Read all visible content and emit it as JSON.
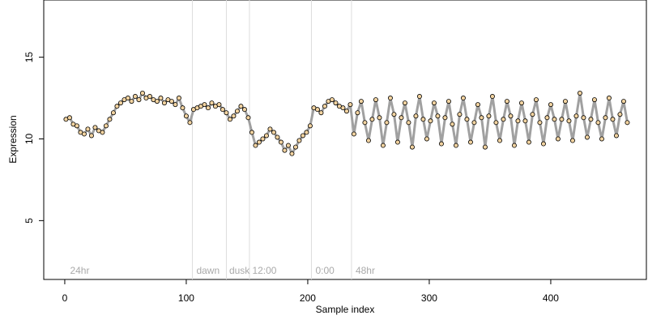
{
  "chart_data": {
    "type": "line",
    "xlabel": "Sample index",
    "ylabel": "Expression",
    "x": [
      1,
      4,
      7,
      10,
      13,
      16,
      19,
      22,
      25,
      28,
      31,
      34,
      37,
      40,
      43,
      46,
      49,
      52,
      55,
      58,
      61,
      64,
      67,
      70,
      73,
      76,
      79,
      82,
      85,
      88,
      91,
      94,
      97,
      100,
      103,
      106,
      109,
      112,
      115,
      118,
      121,
      124,
      127,
      130,
      133,
      136,
      139,
      142,
      145,
      148,
      151,
      154,
      157,
      160,
      163,
      166,
      169,
      172,
      175,
      178,
      181,
      184,
      187,
      190,
      193,
      196,
      199,
      202,
      205,
      208,
      211,
      214,
      217,
      220,
      223,
      226,
      229,
      232,
      235,
      238,
      241,
      244,
      247,
      250,
      253,
      256,
      259,
      262,
      265,
      268,
      271,
      274,
      277,
      280,
      283,
      286,
      289,
      292,
      295,
      298,
      301,
      304,
      307,
      310,
      313,
      316,
      319,
      322,
      325,
      328,
      331,
      334,
      337,
      340,
      343,
      346,
      349,
      352,
      355,
      358,
      361,
      364,
      367,
      370,
      373,
      376,
      379,
      382,
      385,
      388,
      391,
      394,
      397,
      400,
      403,
      406,
      409,
      412,
      415,
      418,
      421,
      424,
      427,
      430,
      433,
      436,
      439,
      442,
      445,
      448,
      451,
      454,
      457,
      460,
      463
    ],
    "values": [
      11.2,
      11.3,
      10.9,
      10.8,
      10.4,
      10.3,
      10.6,
      10.2,
      10.7,
      10.5,
      10.4,
      10.8,
      11.2,
      11.6,
      12.0,
      12.2,
      12.4,
      12.5,
      12.3,
      12.6,
      12.4,
      12.8,
      12.5,
      12.6,
      12.4,
      12.3,
      12.5,
      12.2,
      12.4,
      12.3,
      12.1,
      12.5,
      11.9,
      11.4,
      11.0,
      11.8,
      11.9,
      12.0,
      12.1,
      11.9,
      12.2,
      12.0,
      12.1,
      11.8,
      11.6,
      11.2,
      11.4,
      11.7,
      12.0,
      11.8,
      11.3,
      10.4,
      9.6,
      9.8,
      10.0,
      10.2,
      10.6,
      10.4,
      10.1,
      9.8,
      9.3,
      9.6,
      9.1,
      9.5,
      9.9,
      10.2,
      10.4,
      10.8,
      11.9,
      11.8,
      11.6,
      12.0,
      12.3,
      12.4,
      12.2,
      12.0,
      11.9,
      11.7,
      12.1,
      10.3,
      11.6,
      12.3,
      11.0,
      9.9,
      11.2,
      12.4,
      11.3,
      9.6,
      11.0,
      12.5,
      11.5,
      9.8,
      11.3,
      12.2,
      11.0,
      9.5,
      11.4,
      12.6,
      11.2,
      10.0,
      11.1,
      12.2,
      11.4,
      9.7,
      11.3,
      12.3,
      10.9,
      9.6,
      11.5,
      12.5,
      11.2,
      9.8,
      11.0,
      12.1,
      11.3,
      9.5,
      11.4,
      12.6,
      11.0,
      9.9,
      11.2,
      12.3,
      11.4,
      9.6,
      11.1,
      12.2,
      11.1,
      9.8,
      11.5,
      12.4,
      11.0,
      9.7,
      11.3,
      12.1,
      11.2,
      10.0,
      11.2,
      12.3,
      11.1,
      9.9,
      11.4,
      12.8,
      11.3,
      10.1,
      11.2,
      12.4,
      11.0,
      10.0,
      11.3,
      12.5,
      11.2,
      10.2,
      11.5,
      12.3,
      11.0
    ],
    "line_color": "#a0a0a0",
    "marker_fill": "#f2d3a0",
    "xlim": [
      -17.3,
      478.7
    ],
    "ylim": [
      1.4,
      18.5
    ],
    "xticks": [
      0,
      100,
      200,
      300,
      400
    ],
    "yticks": [
      5,
      10,
      15
    ],
    "vlines": [
      105,
      133,
      152,
      203,
      236
    ],
    "annotations": [
      {
        "text": "24hr",
        "x": 3
      },
      {
        "text": "dawn",
        "x": 107
      },
      {
        "text": "dusk",
        "x": 134
      },
      {
        "text": "12:00",
        "x": 153
      },
      {
        "text": "0:00",
        "x": 205
      },
      {
        "text": "48hr",
        "x": 238
      }
    ]
  }
}
